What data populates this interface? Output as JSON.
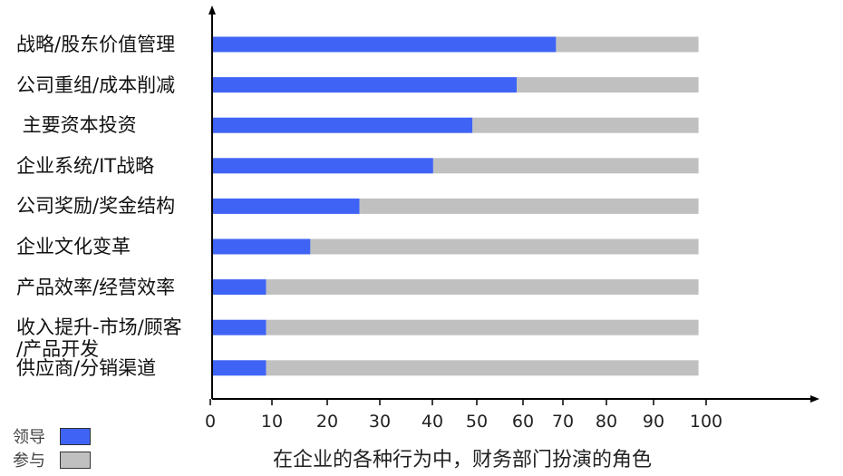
{
  "chart_data": {
    "type": "bar",
    "orientation": "horizontal",
    "stacked": true,
    "categories": [
      "战略/股东价值管理",
      "公司重组/成本削减",
      " 主要资本投资",
      "企业系统/IT战略",
      "公司奖励/奖金结构",
      "企业文化变革",
      "产品效率/经营效率",
      "收入提升-市场/顾客\n/产品开发",
      "供应商/分销渠道"
    ],
    "series": [
      {
        "name": "领导",
        "color": "#3f64f5",
        "values": [
          70,
          62,
          53,
          45,
          30,
          20,
          11,
          11,
          11
        ]
      },
      {
        "name": "参与",
        "color": "#c0c0c0",
        "values": [
          29,
          37,
          46,
          54,
          69,
          79,
          88,
          88,
          88
        ]
      }
    ],
    "x_ticks": [
      "0",
      "10",
      "20",
      "30",
      "40",
      "50",
      "60",
      "70",
      "80",
      "90",
      "100"
    ],
    "xlim": [
      0,
      100
    ],
    "xlabel": "在企业的各种行为中，财务部门扮演的角色",
    "ylabel": "",
    "title": "",
    "grid": false,
    "legend_position": "bottom-left"
  }
}
